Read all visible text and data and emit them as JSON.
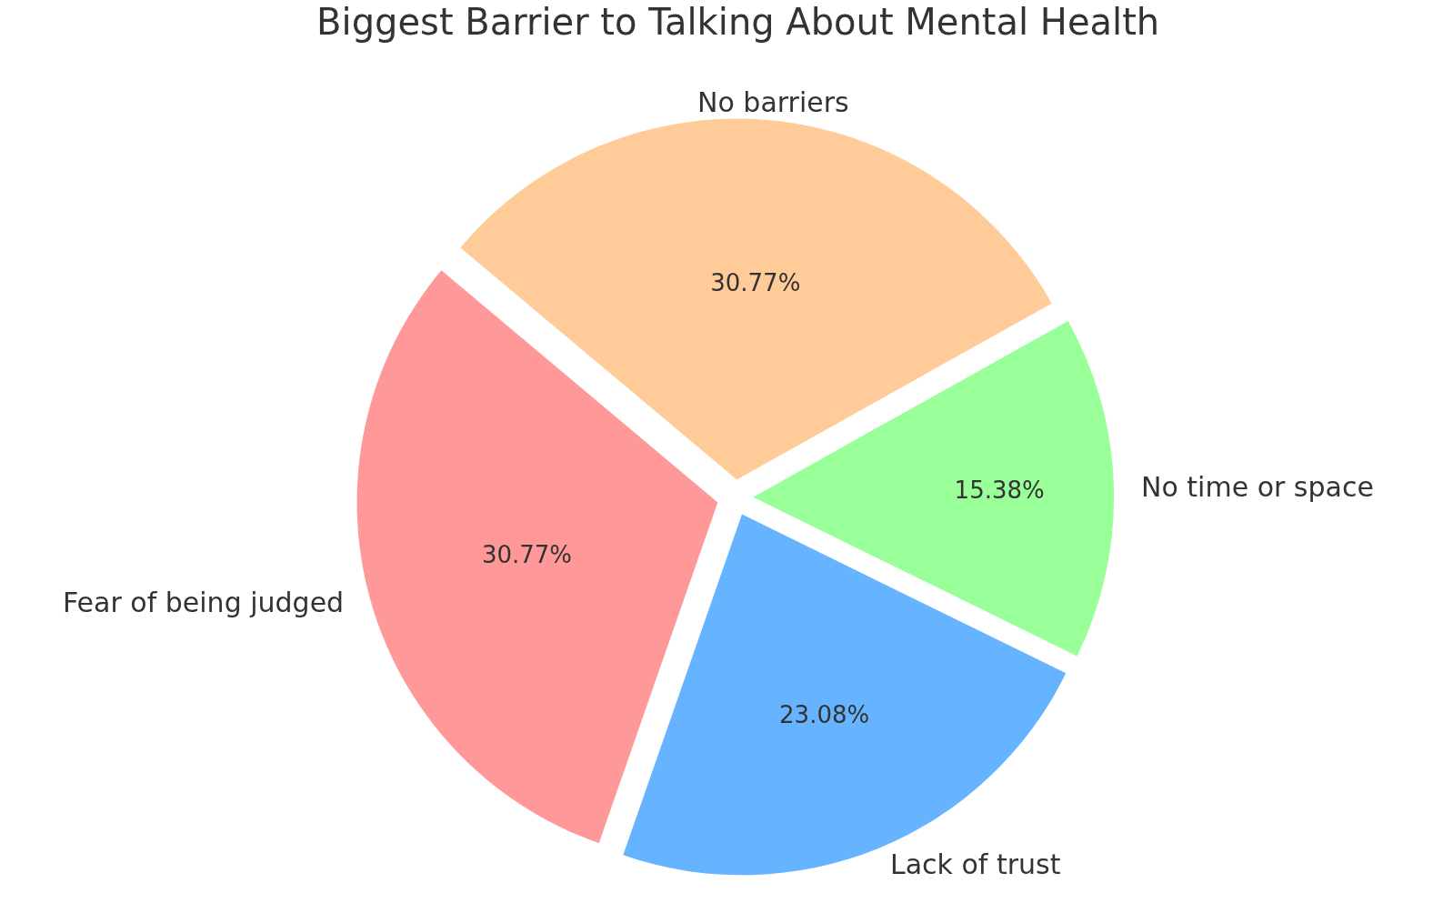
{
  "chart_data": {
    "type": "pie",
    "title": "Biggest Barrier to Talking About Mental Health",
    "categories": [
      "Fear of being judged",
      "Lack of trust",
      "No time or space",
      "No barriers"
    ],
    "values": [
      30.77,
      23.08,
      15.38,
      30.77
    ],
    "colors": [
      "#ff9999",
      "#66b3ff",
      "#99ff99",
      "#ffcc99"
    ],
    "value_labels": [
      "30.77%",
      "23.08%",
      "15.38%",
      "30.77%"
    ],
    "legend": false
  }
}
